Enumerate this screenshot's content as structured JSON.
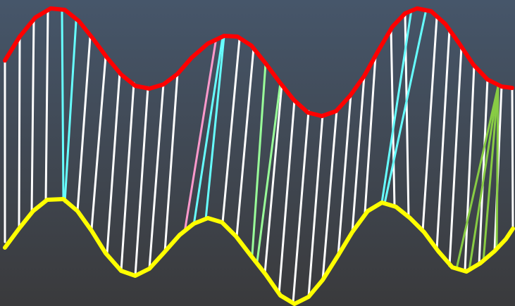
{
  "colors": {
    "background_top": "#46566a",
    "background_bottom": "#3a3a3c",
    "upper_curve": "#ff0000",
    "lower_curve": "#ffff00",
    "default_link": "#ffffff",
    "group_cyan": "#66ffff",
    "group_pink": "#ff99cc",
    "group_lightgreen": "#99ff99",
    "group_olive": "#88cc44"
  },
  "diagram": {
    "type": "curve-to-curve correspondence links",
    "curves": [
      {
        "name": "upper",
        "color_key": "upper_curve",
        "link_points": 37
      },
      {
        "name": "lower",
        "color_key": "lower_curve",
        "link_points": 37
      }
    ],
    "link_groups": [
      {
        "color_key": "group_cyan",
        "count": 2
      },
      {
        "color_key": "group_pink",
        "count": 1
      },
      {
        "color_key": "group_cyan",
        "count": 2
      },
      {
        "color_key": "group_lightgreen",
        "count": 2
      },
      {
        "color_key": "group_cyan",
        "count": 2
      },
      {
        "color_key": "group_olive",
        "count": 4
      }
    ]
  }
}
